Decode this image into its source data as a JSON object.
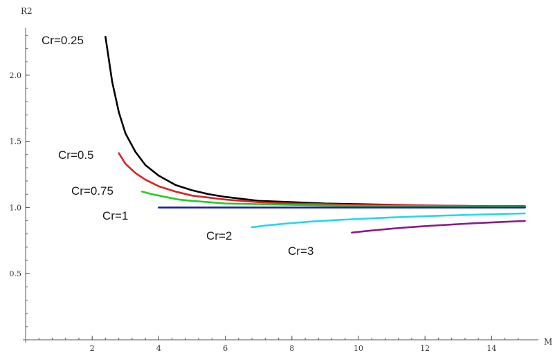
{
  "chart_data": {
    "type": "line",
    "title": "",
    "xlabel": "M",
    "ylabel": "R2",
    "xlim": [
      0,
      15.1
    ],
    "ylim": [
      0,
      2.3
    ],
    "x_ticks": [
      2,
      4,
      6,
      8,
      10,
      12,
      14
    ],
    "y_ticks": [
      0.5,
      1.0,
      1.5,
      2.0
    ],
    "x_tick_labels": [
      "2",
      "4",
      "6",
      "8",
      "10",
      "12",
      "14"
    ],
    "y_tick_labels": [
      "0.5",
      "1.0",
      "1.5",
      "2.0"
    ],
    "minor_x_step": 0.4,
    "minor_y_step": 0.1,
    "grid": false,
    "series": [
      {
        "name": "Cr=0.25",
        "color": "#000000",
        "x": [
          2.4,
          2.6,
          2.8,
          3.0,
          3.3,
          3.6,
          4.0,
          4.5,
          5.0,
          5.5,
          6.0,
          7.0,
          8.0,
          9.0,
          10.0,
          11.0,
          12.0,
          13.0,
          14.0,
          15.0
        ],
        "y": [
          2.29,
          1.95,
          1.72,
          1.56,
          1.42,
          1.32,
          1.24,
          1.17,
          1.13,
          1.1,
          1.08,
          1.05,
          1.04,
          1.03,
          1.025,
          1.02,
          1.015,
          1.012,
          1.01,
          1.01
        ]
      },
      {
        "name": "Cr=0.5",
        "color": "#e02020",
        "x": [
          2.8,
          3.0,
          3.3,
          3.6,
          4.0,
          4.5,
          5.0,
          6.0,
          7.0,
          8.0,
          9.0,
          10.0,
          12.0,
          14.0,
          15.0
        ],
        "y": [
          1.41,
          1.33,
          1.26,
          1.21,
          1.16,
          1.12,
          1.09,
          1.06,
          1.04,
          1.03,
          1.025,
          1.02,
          1.015,
          1.01,
          1.01
        ]
      },
      {
        "name": "Cr=0.75",
        "color": "#22cc22",
        "x": [
          3.5,
          3.8,
          4.2,
          4.6,
          5.0,
          5.5,
          6.0,
          7.0,
          8.0,
          9.0,
          10.0,
          12.0,
          14.0,
          15.0
        ],
        "y": [
          1.12,
          1.1,
          1.08,
          1.06,
          1.05,
          1.04,
          1.03,
          1.025,
          1.02,
          1.015,
          1.012,
          1.01,
          1.007,
          1.005
        ]
      },
      {
        "name": "Cr=1",
        "color": "#1a1aa6",
        "x": [
          4.0,
          15.0
        ],
        "y": [
          1.0,
          1.0
        ]
      },
      {
        "name": "Cr=2",
        "color": "#22d8e8",
        "x": [
          6.8,
          7.2,
          7.6,
          8.0,
          8.5,
          9.0,
          9.5,
          10.0,
          11.0,
          12.0,
          13.0,
          14.0,
          15.0
        ],
        "y": [
          0.85,
          0.863,
          0.873,
          0.882,
          0.892,
          0.9,
          0.907,
          0.913,
          0.925,
          0.934,
          0.942,
          0.949,
          0.955
        ]
      },
      {
        "name": "Cr=3",
        "color": "#8a1a8a",
        "x": [
          9.8,
          10.2,
          10.6,
          11.0,
          11.5,
          12.0,
          12.5,
          13.0,
          13.5,
          14.0,
          14.5,
          15.0
        ],
        "y": [
          0.81,
          0.821,
          0.831,
          0.84,
          0.85,
          0.859,
          0.867,
          0.874,
          0.881,
          0.887,
          0.893,
          0.898
        ]
      }
    ],
    "annotations": [
      {
        "text": "Cr=0.25",
        "series": "Cr=0.25"
      },
      {
        "text": "Cr=0.5",
        "series": "Cr=0.5"
      },
      {
        "text": "Cr=0.75",
        "series": "Cr=0.75"
      },
      {
        "text": "Cr=1",
        "series": "Cr=1"
      },
      {
        "text": "Cr=2",
        "series": "Cr=2"
      },
      {
        "text": "Cr=3",
        "series": "Cr=3"
      }
    ]
  }
}
